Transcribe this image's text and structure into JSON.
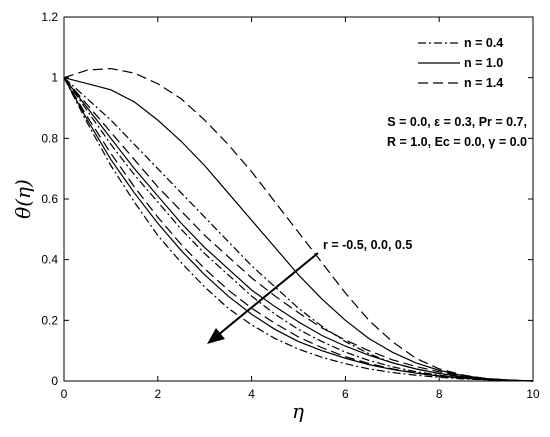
{
  "chart_data": {
    "type": "line",
    "title": "",
    "xlabel": "η",
    "ylabel": "θ(η)",
    "xlim": [
      0,
      10
    ],
    "ylim": [
      0,
      1.2
    ],
    "x_ticks": [
      "0",
      "2",
      "4",
      "6",
      "8",
      "10"
    ],
    "y_ticks": [
      "0",
      "0.2",
      "0.4",
      "0.6",
      "0.8",
      "1",
      "1.2"
    ],
    "grid": false,
    "legend_position": "top-right",
    "legend": [
      {
        "label": "n = 0.4",
        "style": "dashdot"
      },
      {
        "label": "n = 1.0",
        "style": "solid"
      },
      {
        "label": "n = 1.4",
        "style": "dashed"
      }
    ],
    "parameters_text": [
      "S = 0.0, ε = 0.3, Pr = 0.7,",
      "R = 1.0, Ec = 0.0, γ = 0.0"
    ],
    "arrow_label": "r = -0.5, 0.0, 0.5",
    "series": [
      {
        "group": "n = 1.4",
        "r": 0.5,
        "style": "dashed",
        "x": [
          0,
          0.5,
          1,
          1.5,
          2,
          2.5,
          3,
          3.5,
          4,
          4.5,
          5,
          5.5,
          6,
          6.5,
          7,
          7.5,
          8,
          8.5,
          9,
          9.5,
          10
        ],
        "y": [
          1,
          1.025,
          1.03,
          1.015,
          0.98,
          0.93,
          0.86,
          0.78,
          0.69,
          0.59,
          0.49,
          0.39,
          0.29,
          0.2,
          0.13,
          0.075,
          0.04,
          0.02,
          0.008,
          0.003,
          0
        ]
      },
      {
        "group": "n = 1.0",
        "r": 0.5,
        "style": "solid",
        "x": [
          0,
          0.5,
          1,
          1.5,
          2,
          2.5,
          3,
          3.5,
          4,
          4.5,
          5,
          5.5,
          6,
          6.5,
          7,
          7.5,
          8,
          8.5,
          9,
          9.5,
          10
        ],
        "y": [
          1,
          0.98,
          0.96,
          0.92,
          0.86,
          0.79,
          0.71,
          0.62,
          0.53,
          0.44,
          0.35,
          0.27,
          0.2,
          0.14,
          0.095,
          0.06,
          0.035,
          0.018,
          0.008,
          0.003,
          0
        ]
      },
      {
        "group": "n = 0.4",
        "r": 0.5,
        "style": "dashdot",
        "x": [
          0,
          0.5,
          1,
          1.5,
          2,
          2.5,
          3,
          3.5,
          4,
          4.5,
          5,
          5.5,
          6,
          6.5,
          7,
          7.5,
          8,
          8.5,
          9,
          9.5,
          10
        ],
        "y": [
          1,
          0.93,
          0.86,
          0.78,
          0.7,
          0.62,
          0.54,
          0.46,
          0.38,
          0.31,
          0.24,
          0.18,
          0.13,
          0.09,
          0.06,
          0.04,
          0.024,
          0.013,
          0.006,
          0.002,
          0
        ]
      },
      {
        "group": "n = 1.4",
        "r": 0.0,
        "style": "dashed",
        "x": [
          0,
          0.5,
          1,
          1.5,
          2,
          2.5,
          3,
          3.5,
          4,
          4.5,
          5,
          5.5,
          6,
          6.5,
          7,
          7.5,
          8,
          8.5,
          9,
          9.5,
          10
        ],
        "y": [
          1,
          0.91,
          0.82,
          0.73,
          0.64,
          0.56,
          0.48,
          0.41,
          0.34,
          0.28,
          0.225,
          0.175,
          0.135,
          0.1,
          0.07,
          0.048,
          0.03,
          0.017,
          0.008,
          0.003,
          0
        ]
      },
      {
        "group": "n = 1.0",
        "r": 0.0,
        "style": "solid",
        "x": [
          0,
          0.5,
          1,
          1.5,
          2,
          2.5,
          3,
          3.5,
          4,
          4.5,
          5,
          5.5,
          6,
          6.5,
          7,
          7.5,
          8,
          8.5,
          9,
          9.5,
          10
        ],
        "y": [
          1,
          0.9,
          0.8,
          0.7,
          0.61,
          0.52,
          0.44,
          0.37,
          0.3,
          0.245,
          0.195,
          0.15,
          0.115,
          0.085,
          0.06,
          0.04,
          0.025,
          0.014,
          0.007,
          0.003,
          0
        ]
      },
      {
        "group": "n = 0.4",
        "r": 0.0,
        "style": "dashdot",
        "x": [
          0,
          0.5,
          1,
          1.5,
          2,
          2.5,
          3,
          3.5,
          4,
          4.5,
          5,
          5.5,
          6,
          6.5,
          7,
          7.5,
          8,
          8.5,
          9,
          9.5,
          10
        ],
        "y": [
          1,
          0.89,
          0.78,
          0.68,
          0.59,
          0.5,
          0.42,
          0.35,
          0.28,
          0.22,
          0.17,
          0.13,
          0.095,
          0.068,
          0.047,
          0.031,
          0.019,
          0.011,
          0.005,
          0.002,
          0
        ]
      },
      {
        "group": "n = 1.4",
        "r": -0.5,
        "style": "dashed",
        "x": [
          0,
          0.5,
          1,
          1.5,
          2,
          2.5,
          3,
          3.5,
          4,
          4.5,
          5,
          5.5,
          6,
          6.5,
          7,
          7.5,
          8,
          8.5,
          9,
          9.5,
          10
        ],
        "y": [
          1,
          0.87,
          0.75,
          0.64,
          0.54,
          0.45,
          0.37,
          0.3,
          0.24,
          0.19,
          0.145,
          0.11,
          0.08,
          0.058,
          0.04,
          0.027,
          0.017,
          0.01,
          0.005,
          0.002,
          0
        ]
      },
      {
        "group": "n = 1.0",
        "r": -0.5,
        "style": "solid",
        "x": [
          0,
          0.5,
          1,
          1.5,
          2,
          2.5,
          3,
          3.5,
          4,
          4.5,
          5,
          5.5,
          6,
          6.5,
          7,
          7.5,
          8,
          8.5,
          9,
          9.5,
          10
        ],
        "y": [
          1,
          0.86,
          0.73,
          0.62,
          0.52,
          0.43,
          0.35,
          0.28,
          0.22,
          0.17,
          0.13,
          0.1,
          0.075,
          0.054,
          0.038,
          0.026,
          0.016,
          0.009,
          0.005,
          0.002,
          0
        ]
      },
      {
        "group": "n = 0.4",
        "r": -0.5,
        "style": "dashdot",
        "x": [
          0,
          0.5,
          1,
          1.5,
          2,
          2.5,
          3,
          3.5,
          4,
          4.5,
          5,
          5.5,
          6,
          6.5,
          7,
          7.5,
          8,
          8.5,
          9,
          9.5,
          10
        ],
        "y": [
          1,
          0.85,
          0.71,
          0.59,
          0.48,
          0.39,
          0.31,
          0.24,
          0.185,
          0.14,
          0.105,
          0.078,
          0.057,
          0.04,
          0.028,
          0.019,
          0.012,
          0.007,
          0.004,
          0.002,
          0
        ]
      }
    ]
  }
}
